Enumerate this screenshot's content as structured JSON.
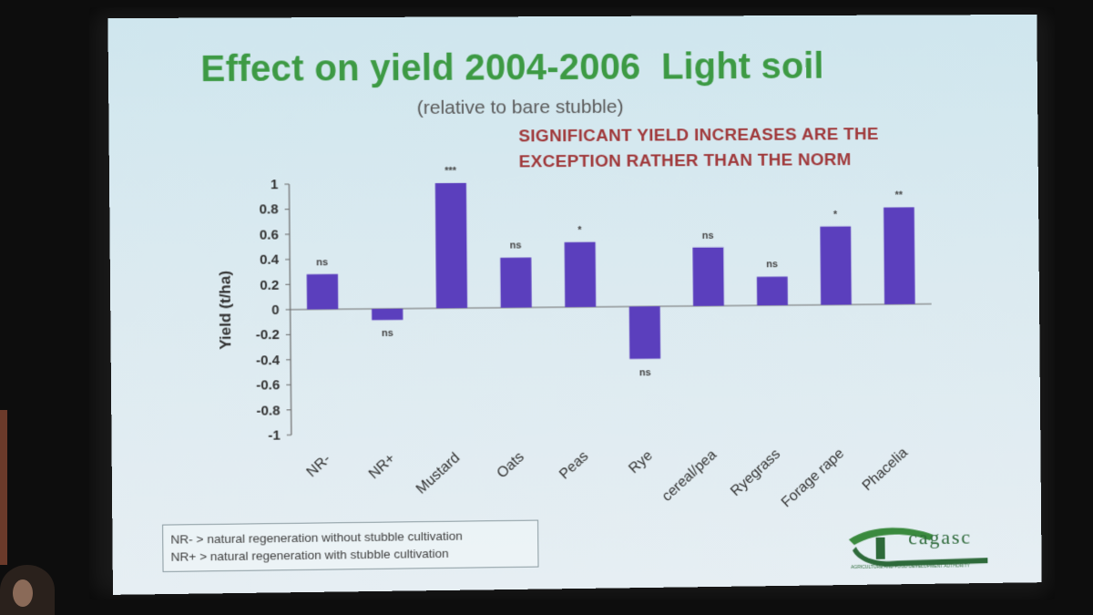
{
  "slide": {
    "title": "Effect on yield 2004-2006  Light soil",
    "subtitle": "(relative to bare stubble)",
    "note_lines": [
      "SIGNIFICANT YIELD INCREASES ARE THE",
      "EXCEPTION RATHER THAN THE NORM"
    ],
    "legend_lines": [
      "NR-  > natural regeneration without stubble cultivation",
      "NR+  > natural regeneration with stubble cultivation"
    ],
    "logo_text": "cagasc",
    "logo_tagline": "AGRICULTURE AND FOOD DEVELOPMENT AUTHORITY"
  },
  "colors": {
    "bar": "#5b3fbd",
    "title": "#3d9a44",
    "note": "#a0393b",
    "axis": "#6a6a6a"
  },
  "chart_data": {
    "type": "bar",
    "title": "Effect on yield 2004-2006  Light soil",
    "subtitle": "(relative to bare stubble)",
    "xlabel": "",
    "ylabel": "Yield (t/ha)",
    "ylim": [
      -1,
      1
    ],
    "yticks": [
      "1",
      "0.8",
      "0.6",
      "0.4",
      "0.2",
      "0",
      "-0.2",
      "-0.4",
      "-0.6",
      "-0.8",
      "-1"
    ],
    "ytick_values": [
      1,
      0.8,
      0.6,
      0.4,
      0.2,
      0,
      -0.2,
      -0.4,
      -0.6,
      -0.8,
      -1
    ],
    "categories": [
      "NR-",
      "NR+",
      "Mustard",
      "Oats",
      "Peas",
      "Rye",
      "cereal/pea",
      "Ryegrass",
      "Forage rape",
      "Phacelia"
    ],
    "values": [
      0.28,
      -0.09,
      1.0,
      0.4,
      0.52,
      -0.42,
      0.47,
      0.23,
      0.63,
      0.78
    ],
    "significance": [
      "ns",
      "ns",
      "***",
      "ns",
      "*",
      "ns",
      "ns",
      "ns",
      "*",
      "**"
    ],
    "grid": false,
    "legend": "none"
  }
}
